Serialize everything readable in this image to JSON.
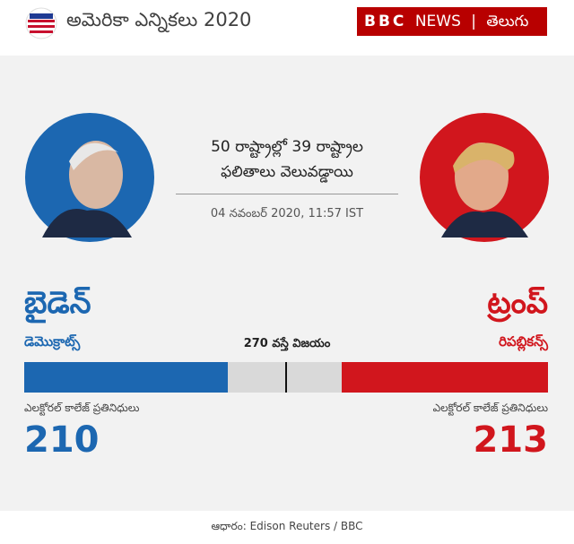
{
  "header": {
    "title": "అమెరికా ఎన్నికలు 2020",
    "brand": "BBC",
    "brand_news": "NEWS",
    "brand_lang": "తెలుగు"
  },
  "status": {
    "lines": [
      "50 రాష్ట్రాల్లో 39 రాష్ట్రాల",
      "ఫలితాలు వెలువడ్డాయి"
    ],
    "timestamp": "04 నవంబర్ 2020, 11:57 IST"
  },
  "threshold": {
    "value": 270,
    "label": "270 వస్తే విజయం"
  },
  "candidates": [
    {
      "name": "బైడెన్",
      "party": "డెమొక్రాట్స్",
      "votes_label": "ఎలక్టోరల్ కాలేజ్ ప్రతినిధులు",
      "votes": 210,
      "color": "#1c67b1"
    },
    {
      "name": "ట్రంప్",
      "party": "రిపబ్లికన్స్",
      "votes_label": "ఎలక్టోరల్ కాలేజ్ ప్రతినిధులు",
      "votes": 213,
      "color": "#d1161d"
    }
  ],
  "source": "ఆధారం: Edison Reuters / BBC"
}
